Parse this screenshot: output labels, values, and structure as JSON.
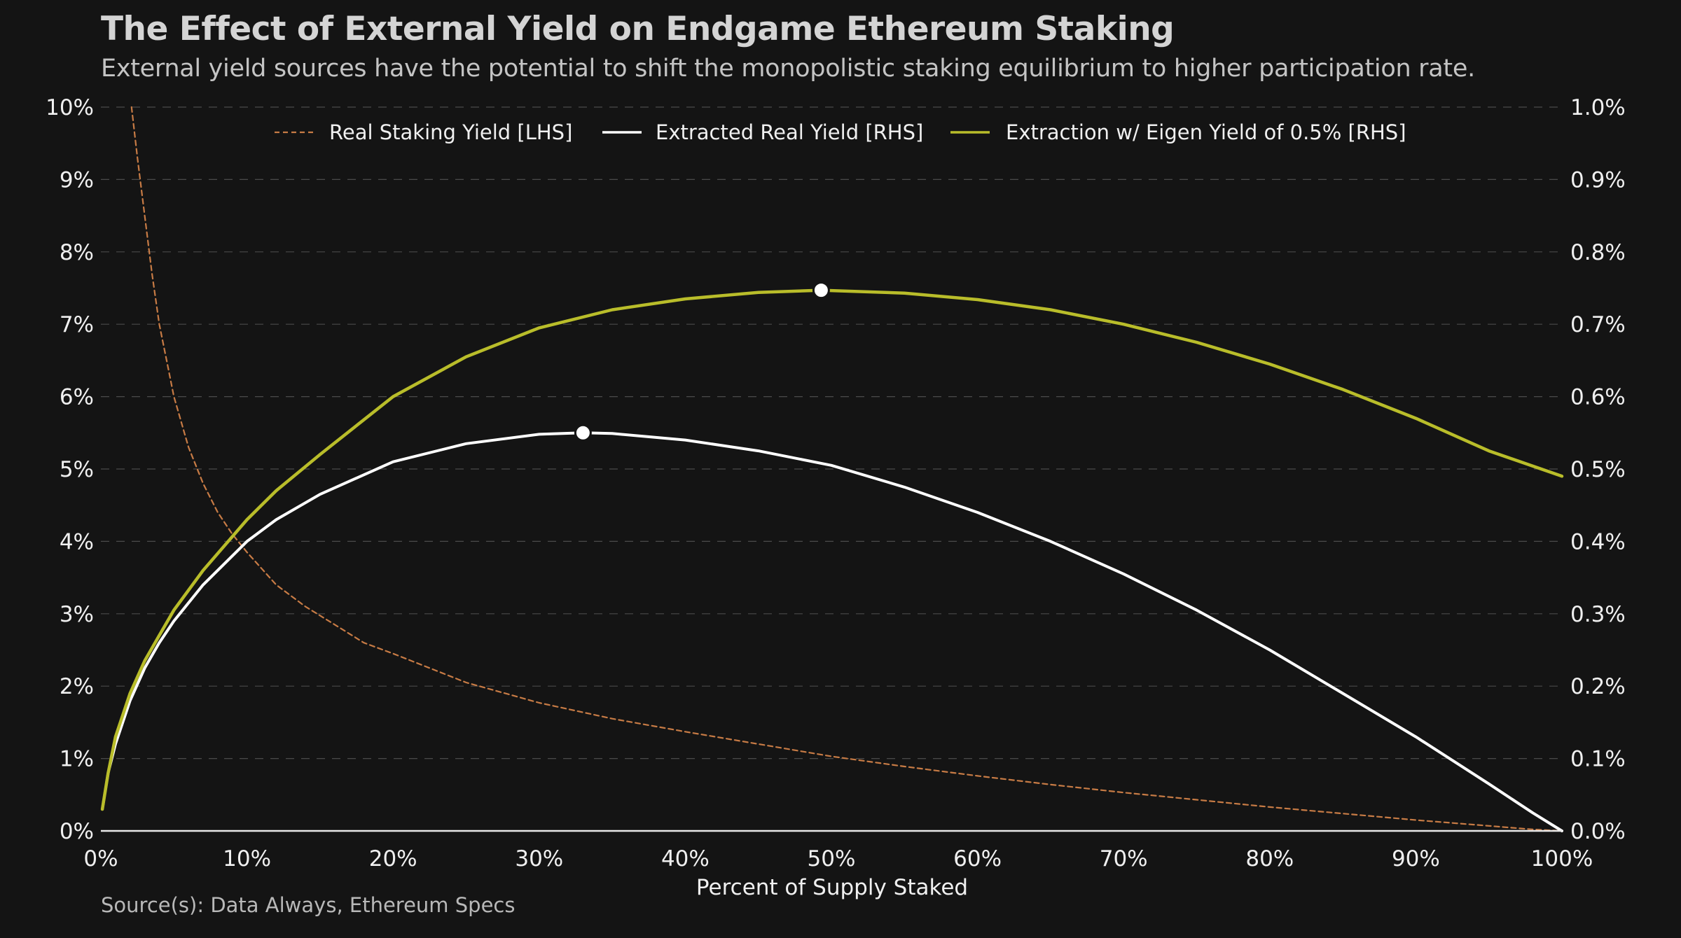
{
  "header": {
    "title": "The Effect of External Yield on Endgame Ethereum Staking",
    "subtitle": "External yield sources have the potential to shift the monopolistic staking equilibrium to higher participation rate."
  },
  "footer": {
    "source": "Source(s): Data Always, Ethereum Specs"
  },
  "colors": {
    "background": "#141414",
    "grid": "#4a4a4a",
    "axis_text": "#f0f0f0",
    "real_staking_yield": "#c77b45",
    "extracted_real_yield": "#ffffff",
    "extraction_eigen": "#b9bd2a"
  },
  "chart_data": {
    "type": "line",
    "xlabel": "Percent of Supply Staked",
    "x_ticks": [
      "0%",
      "10%",
      "20%",
      "30%",
      "40%",
      "50%",
      "60%",
      "70%",
      "80%",
      "90%",
      "100%"
    ],
    "y_left_ticks": [
      "0%",
      "1%",
      "2%",
      "3%",
      "4%",
      "5%",
      "6%",
      "7%",
      "8%",
      "9%",
      "10%"
    ],
    "y_right_ticks": [
      "0.0%",
      "0.1%",
      "0.2%",
      "0.3%",
      "0.4%",
      "0.5%",
      "0.6%",
      "0.7%",
      "0.8%",
      "0.9%",
      "1.0%"
    ],
    "xlim": [
      0,
      100
    ],
    "ylim_left": [
      0,
      10
    ],
    "ylim_right": [
      0,
      1.0
    ],
    "grid": "horizontal dashed",
    "legend_position": "top-center",
    "legend": [
      {
        "label": "Real Staking Yield [LHS]",
        "style": "dashed",
        "color_key": "real_staking_yield"
      },
      {
        "label": "Extracted Real Yield [RHS]",
        "style": "solid",
        "color_key": "extracted_real_yield"
      },
      {
        "label": "Extraction w/ Eigen Yield of 0.5% [RHS]",
        "style": "solid",
        "color_key": "extraction_eigen"
      }
    ],
    "series": [
      {
        "name": "Real Staking Yield [LHS]",
        "axis": "left",
        "x": [
          2.1,
          2.5,
          3,
          3.5,
          4,
          4.5,
          5,
          6,
          7,
          8,
          9,
          10,
          12,
          14,
          16,
          18,
          20,
          25,
          30,
          35,
          40,
          45,
          50,
          55,
          60,
          65,
          70,
          75,
          80,
          85,
          90,
          95,
          98,
          100
        ],
        "y": [
          10.0,
          9.3,
          8.5,
          7.7,
          7.0,
          6.5,
          6.0,
          5.3,
          4.8,
          4.4,
          4.1,
          3.85,
          3.4,
          3.1,
          2.85,
          2.6,
          2.45,
          2.05,
          1.77,
          1.55,
          1.37,
          1.2,
          1.03,
          0.89,
          0.76,
          0.64,
          0.53,
          0.43,
          0.33,
          0.24,
          0.15,
          0.07,
          0.02,
          0.0
        ]
      },
      {
        "name": "Extracted Real Yield [RHS]",
        "axis": "right",
        "x": [
          0.1,
          0.5,
          1,
          2,
          3,
          4,
          5,
          7,
          10,
          12,
          15,
          20,
          25,
          30,
          33,
          35,
          40,
          45,
          50,
          55,
          60,
          65,
          70,
          75,
          80,
          85,
          90,
          95,
          98,
          100
        ],
        "y": [
          0.03,
          0.08,
          0.12,
          0.18,
          0.225,
          0.26,
          0.29,
          0.34,
          0.4,
          0.43,
          0.465,
          0.51,
          0.535,
          0.548,
          0.55,
          0.549,
          0.54,
          0.525,
          0.505,
          0.475,
          0.44,
          0.4,
          0.355,
          0.305,
          0.25,
          0.19,
          0.13,
          0.065,
          0.025,
          0.0
        ]
      },
      {
        "name": "Extraction w/ Eigen Yield of 0.5% [RHS]",
        "axis": "right",
        "x": [
          0.1,
          0.5,
          1,
          2,
          3,
          4,
          5,
          7,
          10,
          12,
          15,
          20,
          25,
          30,
          35,
          40,
          45,
          49.3,
          55,
          60,
          65,
          70,
          75,
          80,
          85,
          90,
          95,
          100
        ],
        "y": [
          0.03,
          0.08,
          0.13,
          0.19,
          0.235,
          0.27,
          0.305,
          0.36,
          0.43,
          0.47,
          0.52,
          0.6,
          0.655,
          0.695,
          0.72,
          0.735,
          0.744,
          0.747,
          0.743,
          0.734,
          0.72,
          0.7,
          0.675,
          0.645,
          0.61,
          0.57,
          0.525,
          0.49
        ]
      }
    ],
    "markers": [
      {
        "series": "Extracted Real Yield [RHS]",
        "x": 33,
        "y": 0.55
      },
      {
        "series": "Extraction w/ Eigen Yield of 0.5% [RHS]",
        "x": 49.3,
        "y": 0.747
      }
    ]
  }
}
